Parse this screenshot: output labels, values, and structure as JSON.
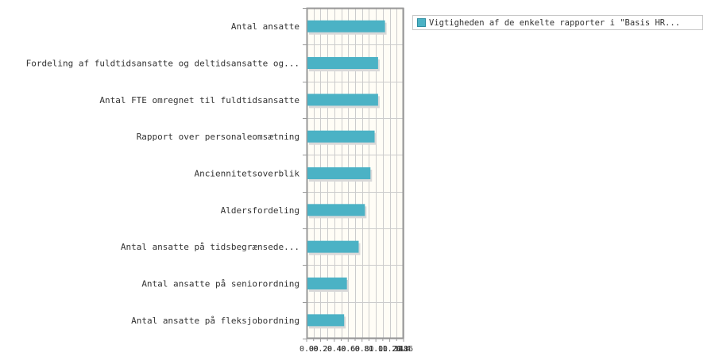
{
  "chart_data": {
    "type": "bar",
    "orientation": "horizontal",
    "categories": [
      "Antal ansatte",
      "Fordeling af fuldtidsansatte og deltidsansatte og...",
      "Antal FTE omregnet til fuldtidsansatte",
      "Rapport over personaleomsætning",
      "Anciennitetsoverblik",
      "Aldersfordeling",
      "Antal ansatte på tidsbegrænsede...",
      "Antal ansatte på seniorordning",
      "Antal ansatte på fleksjobordning"
    ],
    "series": [
      {
        "name": "Vigtigheden af de enkelte rapporter i \"Basis HR...",
        "values": [
          1.12,
          1.02,
          1.02,
          0.97,
          0.91,
          0.83,
          0.74,
          0.57,
          0.53
        ]
      }
    ],
    "xlim": [
      0,
      1.4
    ],
    "xticks": [
      0.0,
      0.2,
      0.4,
      0.6,
      0.8,
      1.0,
      1.2,
      1.4
    ],
    "xtick_labels": [
      "0.0",
      "0.2",
      "0.4",
      "0.6",
      "0.8",
      "1.0",
      "1.2",
      "1.4"
    ],
    "minor_xticks": [
      0.1,
      0.3,
      0.5,
      0.7,
      0.9,
      1.1,
      1.3
    ],
    "extra_tick_labels": [
      "00",
      "20",
      "40",
      "60",
      "80",
      "10",
      "20",
      "1416",
      "18"
    ],
    "grid": true,
    "legend_position": "top-right",
    "colors": {
      "bar": "#4bb2c5",
      "bar_shadow": "#d9d9d9",
      "plot_background": "#fffdf6",
      "grid": "#cccccc",
      "axis": "#999999"
    }
  }
}
